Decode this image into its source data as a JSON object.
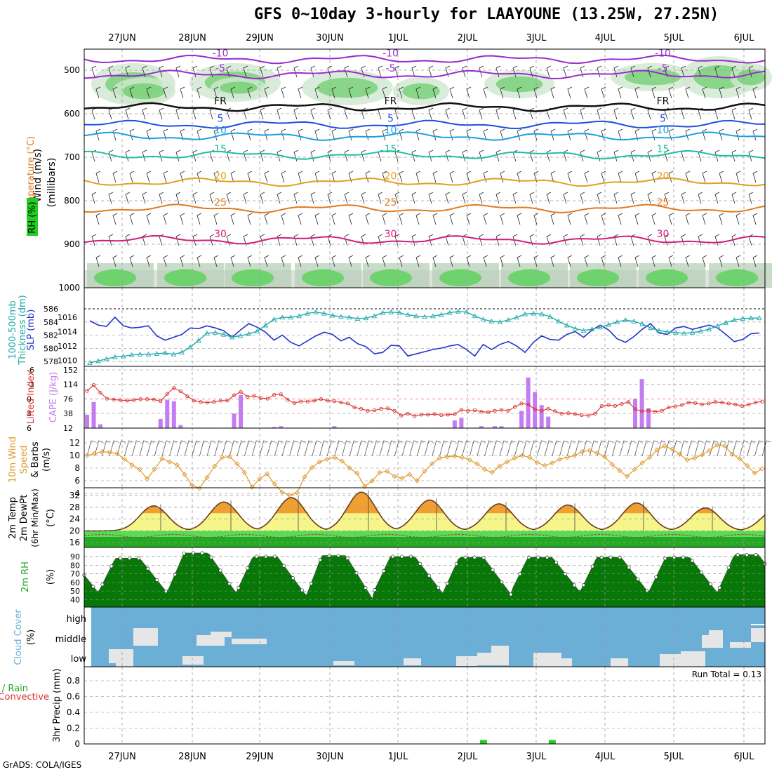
{
  "title": "GFS 0~10day 3-hourly for LAAYOUNE (13.25W, 27.25N)",
  "footer": "GrADS: COLA/IGES",
  "chart_data": {
    "type": "meteogram",
    "dates": [
      "27JUN",
      "28JUN",
      "29JUN",
      "30JUN",
      "1JUL",
      "2JUL",
      "3JUL",
      "4JUL",
      "5JUL",
      "6JUL"
    ],
    "colors": {
      "cloud_bg": "#6baed6",
      "precip_large": "#22cc22",
      "cape": "#c47cf2",
      "lifted": "#dd3333",
      "slp": "#2233cc",
      "thickness": "#22aaaa",
      "wind": "#e09a2c",
      "rh_green": "#22bb22"
    },
    "panels": [
      {
        "id": "upper",
        "labels": [
          "Wind (m/s)",
          "Temperature (°C)",
          "RH (%)",
          "(millibars)"
        ],
        "y_ticks": [
          "500",
          "600",
          "700",
          "800",
          "900",
          "1000"
        ],
        "isotherms": [
          {
            "label": "-10",
            "level": 475
          },
          {
            "label": "-5",
            "level": 510
          },
          {
            "label": "FR",
            "level": 585
          },
          {
            "label": "5",
            "level": 625
          },
          {
            "label": "10",
            "level": 652
          },
          {
            "label": "15",
            "level": 695
          },
          {
            "label": "20",
            "level": 757
          },
          {
            "label": "25",
            "level": 818
          },
          {
            "label": "30",
            "level": 890
          }
        ]
      },
      {
        "id": "pressure",
        "labels": [
          "1000-500mb",
          "Thickness (dm)",
          "SLP (mb)"
        ],
        "y_ticks_left": [
          "586",
          "584",
          "582",
          "580",
          "578"
        ],
        "y_ticks_right": [
          "1016",
          "1014",
          "1012",
          "1010"
        ],
        "slp": [
          1015.9,
          1015.3,
          1015.1,
          1016.4,
          1015.2,
          1014.9,
          1015.0,
          1015.2,
          1013.8,
          1013.2,
          1013.6,
          1014.0,
          1014.9,
          1014.8,
          1015.2,
          1014.9,
          1014.5,
          1013.6,
          1014.6,
          1015.5,
          1015.0,
          1014.3,
          1013.2,
          1013.9,
          1012.9,
          1012.4,
          1013.1,
          1013.8,
          1014.3,
          1014.0,
          1013.1,
          1013.6,
          1012.7,
          1012.3,
          1011.3,
          1011.5,
          1012.5,
          1012.4,
          1011.0,
          1011.3,
          1011.6,
          1011.9,
          1012.1,
          1012.4,
          1012.6,
          1011.9,
          1011.0,
          1012.6,
          1011.9,
          1012.6,
          1013.0,
          1012.4,
          1011.5,
          1012.9,
          1013.8,
          1013.3,
          1013.2,
          1014.0,
          1014.4,
          1013.6,
          1014.6,
          1015.3,
          1014.6,
          1013.4,
          1012.9,
          1013.7,
          1014.7,
          1015.5,
          1014.2,
          1014.0,
          1014.9,
          1015.1,
          1014.7,
          1015.0,
          1015.3,
          1014.9,
          1014.0,
          1013.0,
          1013.3,
          1014.1,
          1014.2
        ],
        "thickness": [
          577.8,
          578.1,
          578.4,
          578.7,
          578.8,
          579.0,
          579.1,
          579.1,
          579.2,
          579.3,
          579.1,
          579.4,
          580.2,
          581.2,
          582.3,
          582.4,
          582.1,
          581.7,
          581.9,
          582.2,
          582.6,
          583.5,
          584.4,
          584.7,
          584.7,
          584.9,
          585.3,
          585.5,
          585.3,
          585.0,
          584.8,
          584.7,
          584.5,
          584.6,
          584.9,
          585.4,
          585.5,
          585.4,
          585.1,
          584.9,
          584.8,
          584.9,
          585.1,
          585.4,
          585.6,
          585.5,
          584.9,
          584.4,
          584.1,
          584.0,
          584.3,
          584.7,
          585.2,
          585.3,
          585.2,
          584.8,
          584.1,
          583.5,
          583.0,
          582.7,
          582.9,
          583.2,
          583.6,
          584.0,
          584.3,
          584.1,
          583.7,
          583.1,
          582.7,
          582.5,
          582.4,
          582.3,
          582.4,
          582.6,
          582.9,
          583.4,
          583.9,
          584.3,
          584.5,
          584.6,
          584.6
        ]
      },
      {
        "id": "cape",
        "labels": [
          "Lifted Index",
          "CAPE (J/kg)"
        ],
        "y_ticks_left": [
          "-6",
          "-3",
          "0",
          "3",
          "6"
        ],
        "y_ticks_right": [
          "152",
          "114",
          "76",
          "38",
          "12"
        ],
        "cape": [
          35,
          68,
          10,
          0,
          0,
          0,
          0,
          0,
          0,
          0,
          0,
          24,
          74,
          70,
          8,
          0,
          0,
          0,
          0,
          0,
          0,
          0,
          38,
          86,
          0,
          0,
          0,
          0,
          3,
          5,
          0,
          0,
          0,
          0,
          0,
          0,
          0,
          5,
          0,
          0,
          0,
          0,
          0,
          0,
          0,
          0,
          0,
          0,
          0,
          0,
          0,
          0,
          0,
          0,
          0,
          20,
          27,
          0,
          0,
          5,
          0,
          5,
          5,
          0,
          0,
          45,
          132,
          94,
          60,
          30,
          0,
          0,
          0,
          0,
          0,
          0,
          0,
          0,
          0,
          0,
          0,
          0,
          76,
          128,
          52,
          0,
          0,
          0,
          0,
          0,
          0,
          0,
          0,
          0,
          0,
          0,
          0,
          0,
          0,
          0,
          0,
          0
        ],
        "lifted": [
          -1.6,
          -2.8,
          -1.2,
          0.0,
          0.2,
          0.3,
          0.4,
          0.3,
          0.1,
          0.1,
          0.2,
          0.5,
          -1.0,
          -2.2,
          -1.5,
          -0.5,
          0.4,
          0.7,
          0.8,
          0.7,
          0.4,
          0.4,
          -0.7,
          -1.4,
          -0.4,
          -0.6,
          -0.1,
          0.0,
          -0.8,
          -0.9,
          0.2,
          0.9,
          0.6,
          0.6,
          0.4,
          0.1,
          0.4,
          0.5,
          0.8,
          1.0,
          1.8,
          2.1,
          2.5,
          2.4,
          2.1,
          2.0,
          2.5,
          3.5,
          3.1,
          3.6,
          3.3,
          3.3,
          3.2,
          3.4,
          3.3,
          3.2,
          2.3,
          2.5,
          2.4,
          2.7,
          2.8,
          2.5,
          2.3,
          2.5,
          1.7,
          1.0,
          1.2,
          2.2,
          2.5,
          2.1,
          2.6,
          3.1,
          3.0,
          3.2,
          3.4,
          3.5,
          3.1,
          1.5,
          1.3,
          1.5,
          1.1,
          0.7,
          2.2,
          2.6,
          2.5,
          2.7,
          2.5,
          1.8,
          1.6,
          1.3,
          0.8,
          0.9
        ],
        "lifted_trailing": [
          1.2,
          1.0,
          0.7,
          0.8,
          1.0,
          1.2,
          1.5,
          1.2,
          0.8,
          0.6
        ]
      },
      {
        "id": "wind10m",
        "labels": [
          "10m Wind",
          "Speed",
          "& Barbs",
          "(m/s)"
        ],
        "y_ticks": [
          "12",
          "10",
          "8",
          "6",
          "4"
        ],
        "speed": [
          10.0,
          10.3,
          10.6,
          10.5,
          10.3,
          9.4,
          8.5,
          7.8,
          6.3,
          7.8,
          9.5,
          9.0,
          8.5,
          7.0,
          5.3,
          4.8,
          6.5,
          8.3,
          9.7,
          9.8,
          8.7,
          7.3,
          5.0,
          6.3,
          7.1,
          5.5,
          4.2,
          3.7,
          4.1,
          6.6,
          8.1,
          9.0,
          9.4,
          9.7,
          9.1,
          8.0,
          7.2,
          5.1,
          6.0,
          7.3,
          7.5,
          6.7,
          6.4,
          7.0,
          6.0,
          7.5,
          8.7,
          9.6,
          9.8,
          9.9,
          9.7,
          9.3,
          8.7,
          7.8,
          7.3,
          8.3,
          9.0,
          9.6,
          10.0,
          9.7,
          8.9,
          8.4,
          8.8,
          9.4,
          9.7,
          10.0,
          10.6,
          10.8,
          10.4,
          9.8,
          8.6,
          7.6,
          6.7,
          7.8,
          8.8,
          9.7,
          10.9,
          11.5,
          11.0,
          10.2,
          9.3,
          9.6,
          10.1,
          10.8,
          11.7,
          11.5,
          10.2,
          9.5,
          8.4,
          7.2,
          7.9
        ]
      },
      {
        "id": "temp2m",
        "labels": [
          "2m Temp",
          "2m DewPt",
          "(6hr Min/Max)",
          "(°C)"
        ],
        "y_ticks": [
          "32",
          "28",
          "24",
          "20",
          "16"
        ],
        "daily_max": [
          28.5,
          29.8,
          31.3,
          33.2,
          30.5,
          29.2,
          28.8,
          29.5,
          27.8,
          27.2
        ]
      },
      {
        "id": "rh2m",
        "labels": [
          "2m RH",
          "(%)"
        ],
        "y_ticks": [
          "90",
          "80",
          "70",
          "60",
          "50",
          "40"
        ],
        "daily_max": [
          88,
          94,
          90,
          91,
          90,
          89,
          89,
          89,
          89,
          92
        ],
        "daily_min": [
          48,
          48,
          47,
          39,
          48,
          46,
          49,
          48,
          48,
          48
        ]
      },
      {
        "id": "cloud",
        "labels": [
          "Cloud Cover",
          "(%)"
        ],
        "y_ticks": [
          "high",
          "middle",
          "low"
        ]
      },
      {
        "id": "precip",
        "labels": [
          "Total / Rain",
          "Convective",
          "3hr Precip (mm)"
        ],
        "y_ticks": [
          "0.8",
          "0.6",
          "0.4",
          "0.2",
          "0"
        ],
        "run_total_label": "Run Total = 0.13",
        "bars": [
          {
            "date": "2JUL",
            "offset_hours": 6,
            "value": 0.05
          },
          {
            "date": "3JUL",
            "offset_hours": 6,
            "value": 0.05
          }
        ]
      }
    ]
  }
}
